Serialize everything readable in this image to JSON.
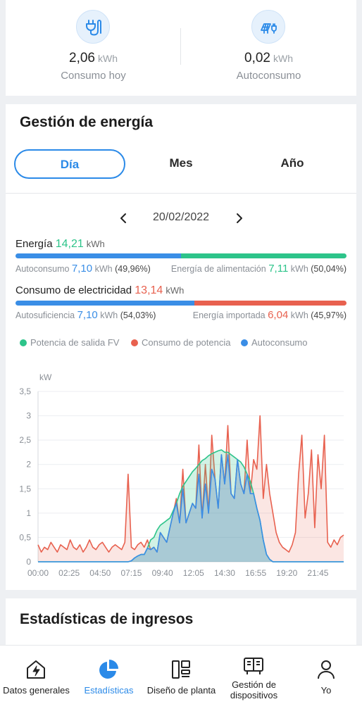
{
  "summary": {
    "consumption": {
      "value": "2,06",
      "unit": "kWh",
      "label": "Consumo hoy",
      "icon": "plug-icon"
    },
    "self_consumption": {
      "value": "0,02",
      "unit": "kWh",
      "label": "Autoconsumo",
      "icon": "solar-panel-plug-icon"
    }
  },
  "energy_management": {
    "title": "Gestión de energía",
    "tabs": [
      {
        "label": "Día",
        "active": true
      },
      {
        "label": "Mes",
        "active": false
      },
      {
        "label": "Año",
        "active": false
      }
    ],
    "date": "20/02/2022",
    "energy": {
      "label": "Energía",
      "value": "14,21",
      "unit": "kWh",
      "self_consumption": {
        "label": "Autoconsumo",
        "value": "7,10",
        "unit": "kWh",
        "pct": "(49,96%)",
        "fraction": 0.4996
      },
      "feed_in": {
        "label": "Energía de alimentación",
        "value": "7,11",
        "unit": "kWh",
        "pct": "(50,04%)",
        "fraction": 0.5004
      }
    },
    "consumption": {
      "label": "Consumo de electricidad",
      "value": "13,14",
      "unit": "kWh",
      "self_sufficiency": {
        "label": "Autosuficiencia",
        "value": "7,10",
        "unit": "kWh",
        "pct": "(54,03%)",
        "fraction": 0.5403
      },
      "imported": {
        "label": "Energía importada",
        "value": "6,04",
        "unit": "kWh",
        "pct": "(45,97%)",
        "fraction": 0.4597
      }
    },
    "colors": {
      "pv": "#2dc48a",
      "consumption": "#e8614f",
      "self": "#3a8ee6",
      "accent": "#2b8ae8"
    }
  },
  "chart_data": {
    "type": "area",
    "ylabel": "kW",
    "ylim": [
      0,
      3.5
    ],
    "yticks": [
      "0",
      "0,5",
      "1",
      "1,5",
      "2",
      "2,5",
      "3",
      "3,5"
    ],
    "xticks": [
      "00:00",
      "02:25",
      "04:50",
      "07:15",
      "09:40",
      "12:05",
      "14:30",
      "16:55",
      "19:20",
      "21:45"
    ],
    "x_minutes_per_point": 15,
    "legend": [
      "Potencia de salida FV",
      "Consumo de potencia",
      "Autoconsumo"
    ],
    "series": [
      {
        "name": "Potencia de salida FV",
        "color": "#2dc48a",
        "values": [
          0,
          0,
          0,
          0,
          0,
          0,
          0,
          0,
          0,
          0,
          0,
          0,
          0,
          0,
          0,
          0,
          0,
          0,
          0,
          0,
          0,
          0,
          0,
          0,
          0,
          0,
          0,
          0,
          0,
          0.02,
          0.08,
          0.12,
          0.15,
          0.15,
          0.28,
          0.45,
          0.5,
          0.65,
          0.75,
          0.8,
          0.85,
          0.9,
          1.05,
          1.2,
          1.4,
          1.55,
          1.65,
          1.75,
          1.85,
          1.92,
          2.0,
          2.08,
          2.12,
          2.18,
          2.22,
          2.25,
          2.28,
          2.3,
          2.25,
          2.25,
          2.2,
          2.15,
          2.1,
          2.05,
          1.95,
          1.8,
          1.65,
          1.4,
          1.1,
          0.85,
          0.45,
          0.15,
          0.05,
          0,
          0,
          0,
          0,
          0,
          0,
          0,
          0,
          0,
          0,
          0,
          0,
          0,
          0,
          0,
          0,
          0,
          0,
          0,
          0,
          0,
          0,
          0
        ]
      },
      {
        "name": "Consumo de potencia",
        "color": "#e8614f",
        "values": [
          0.35,
          0.2,
          0.3,
          0.25,
          0.4,
          0.3,
          0.2,
          0.35,
          0.3,
          0.25,
          0.45,
          0.3,
          0.25,
          0.35,
          0.2,
          0.3,
          0.45,
          0.3,
          0.25,
          0.35,
          0.4,
          0.3,
          0.2,
          0.3,
          0.35,
          0.3,
          0.25,
          0.4,
          1.8,
          0.3,
          0.25,
          0.35,
          0.4,
          0.3,
          0.45,
          0.25,
          0.3,
          0.2,
          0.6,
          0.5,
          0.4,
          0.7,
          1.0,
          1.3,
          0.8,
          1.9,
          0.8,
          1.0,
          1.2,
          1.1,
          2.4,
          0.9,
          2.0,
          1.0,
          2.6,
          1.7,
          1.1,
          2.2,
          1.6,
          2.8,
          1.4,
          1.3,
          2.1,
          1.6,
          1.4,
          2.5,
          1.4,
          2.1,
          1.9,
          3.0,
          1.3,
          2.0,
          1.4,
          1.0,
          0.6,
          0.4,
          0.3,
          0.25,
          0.2,
          0.35,
          0.6,
          1.8,
          2.6,
          0.9,
          1.4,
          2.3,
          0.7,
          2.2,
          1.5,
          2.6,
          0.4,
          0.3,
          0.45,
          0.35,
          0.5,
          0.55
        ]
      },
      {
        "name": "Autoconsumo",
        "color": "#3a8ee6",
        "values": [
          0,
          0,
          0,
          0,
          0,
          0,
          0,
          0,
          0,
          0,
          0,
          0,
          0,
          0,
          0,
          0,
          0,
          0,
          0,
          0,
          0,
          0,
          0,
          0,
          0,
          0,
          0,
          0,
          0,
          0.02,
          0.08,
          0.12,
          0.15,
          0.15,
          0.28,
          0.25,
          0.3,
          0.2,
          0.6,
          0.5,
          0.4,
          0.7,
          1.0,
          1.2,
          0.8,
          1.5,
          0.8,
          1.0,
          1.2,
          1.1,
          1.8,
          0.9,
          1.6,
          1.0,
          1.9,
          1.7,
          1.1,
          2.2,
          1.6,
          2.2,
          1.4,
          1.3,
          2.1,
          1.6,
          1.4,
          1.8,
          1.4,
          1.4,
          1.1,
          0.85,
          0.45,
          0.15,
          0.05,
          0,
          0,
          0,
          0,
          0,
          0,
          0,
          0,
          0,
          0,
          0,
          0,
          0,
          0,
          0,
          0,
          0,
          0,
          0,
          0,
          0,
          0,
          0
        ]
      }
    ]
  },
  "income": {
    "title": "Estadísticas de ingresos"
  },
  "nav": [
    {
      "label": "Datos generales",
      "icon": "home-bolt-icon",
      "active": false
    },
    {
      "label": "Estadísticas",
      "icon": "pie-chart-icon",
      "active": true
    },
    {
      "label": "Diseño de planta",
      "icon": "layout-icon",
      "active": false
    },
    {
      "label": "Gestión de dispositivos",
      "icon": "device-icon",
      "active": false
    },
    {
      "label": "Yo",
      "icon": "person-icon",
      "active": false
    }
  ]
}
